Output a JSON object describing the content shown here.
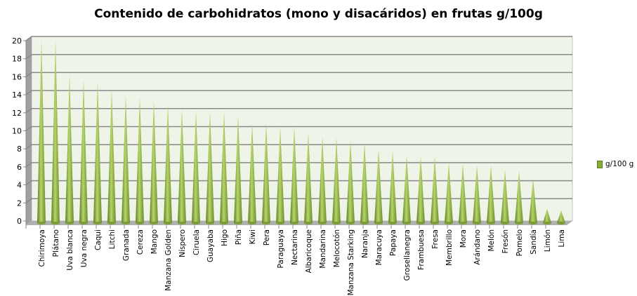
{
  "chart_data": {
    "type": "bar",
    "style": "3d-cone",
    "title": "Contenido de carbohidratos  (mono y disacáridos)  en frutas g/100g",
    "xlabel": "",
    "ylabel": "",
    "ylim": [
      0,
      20
    ],
    "yticks": [
      0,
      2,
      4,
      6,
      8,
      10,
      12,
      14,
      16,
      18,
      20
    ],
    "grid": true,
    "legend_position": "right",
    "categories": [
      "Chirimoya",
      "Plátano",
      "Uva blanca",
      "Uva negra",
      "Caqui",
      "Litchi",
      "Granada",
      "Cereza",
      "Mango",
      "Manzana Golden",
      "Níspero",
      "Ciruela",
      "Guayaba",
      "Higo",
      "Piña",
      "Kiwi",
      "Pera",
      "Paraguaya",
      "Nectarina",
      "Albaricoque",
      "Mandarina",
      "Melocotón",
      "Manzana Starking",
      "Naranja",
      "Maracuya",
      "Papaya",
      "Grosellanegra",
      "Frambuesa",
      "Fresa",
      "Membrillo",
      "Mora",
      "Arándano",
      "Melón",
      "Fresón",
      "Pomelo",
      "Sandía",
      "Limón",
      "Lima"
    ],
    "series": [
      {
        "name": "g/100 g",
        "color": "#8aaa3a",
        "values": [
          20,
          20,
          16.1,
          15.6,
          15.4,
          14.5,
          13.8,
          13.6,
          13.2,
          12.8,
          12.3,
          12.1,
          12,
          12,
          11.6,
          10.7,
          10.7,
          10.3,
          10.3,
          9.6,
          9.2,
          9.1,
          8.8,
          8.6,
          7.8,
          7.6,
          7.1,
          7,
          7,
          6.3,
          6.2,
          6,
          6,
          5.5,
          5.4,
          4.5,
          1.2,
          1
        ]
      }
    ],
    "colors": {
      "plot_background": "#eef5e8",
      "gridline": "#888888",
      "walls": "#a0a0a0"
    }
  }
}
